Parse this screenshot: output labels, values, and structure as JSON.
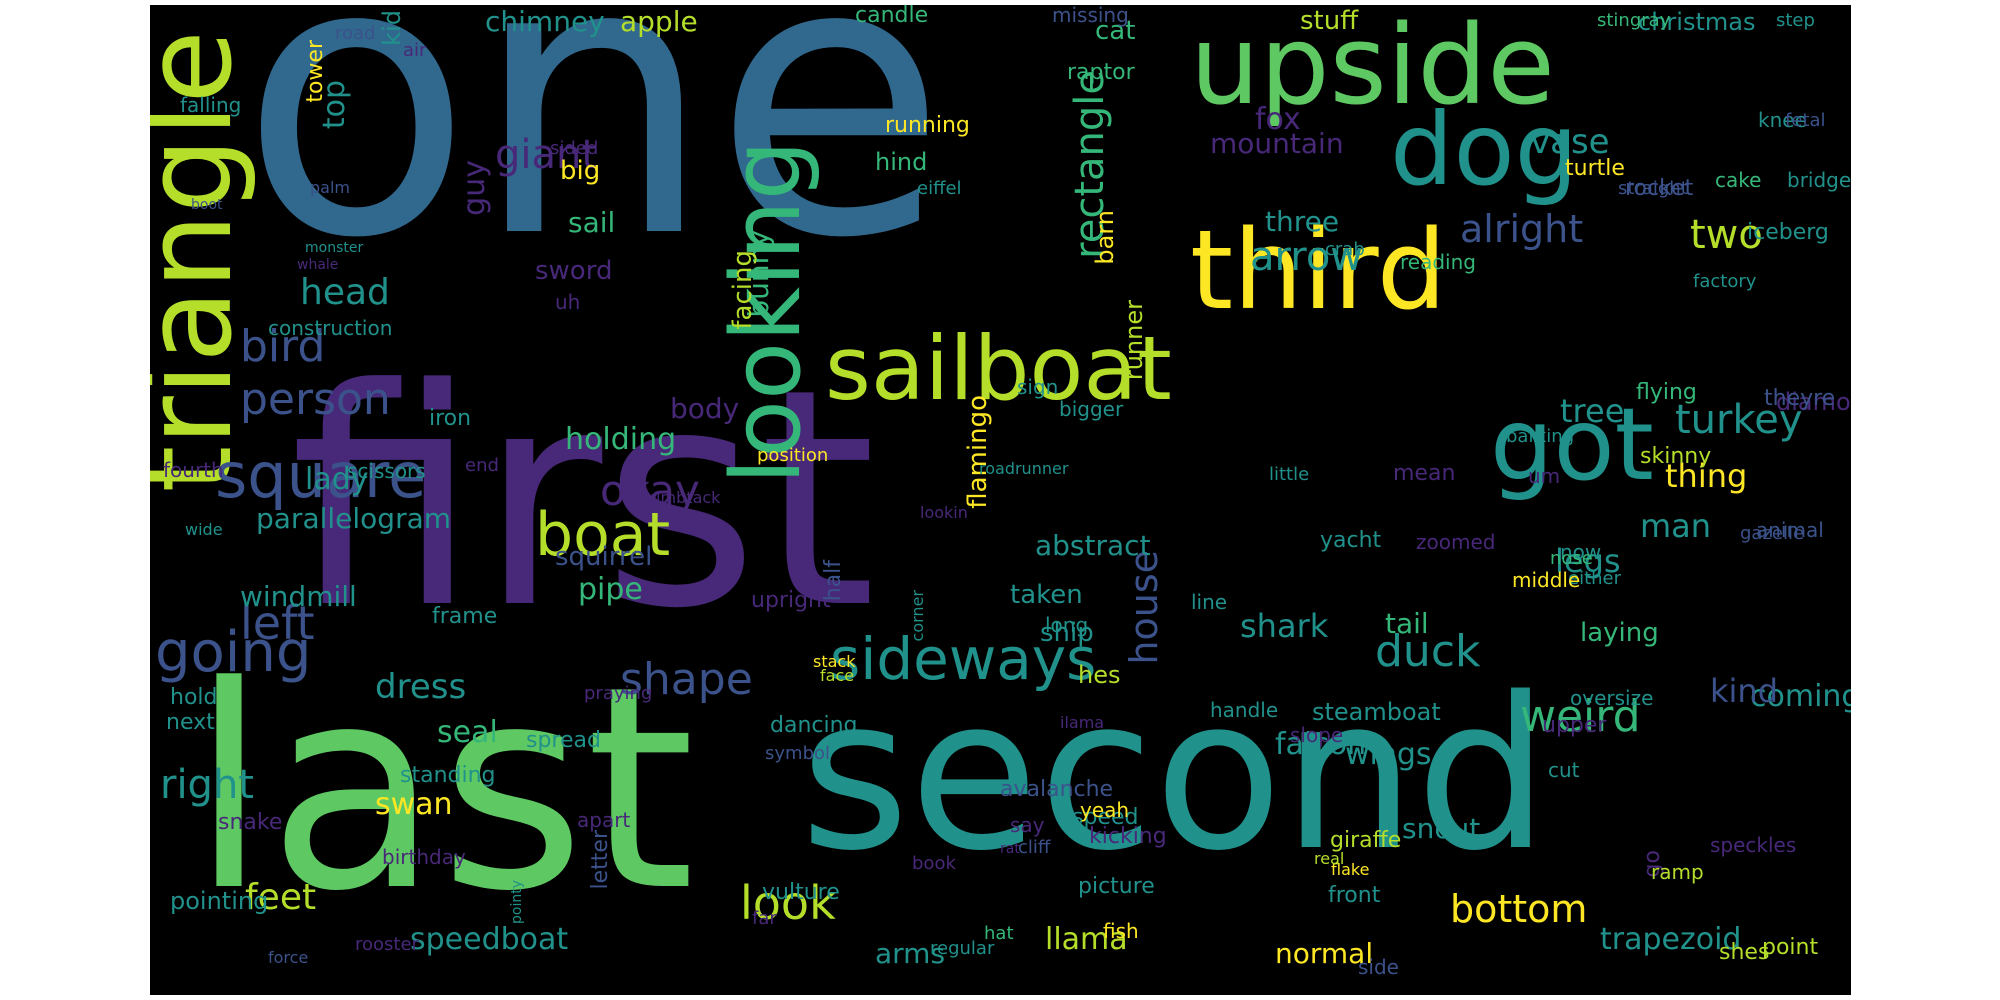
{
  "colors": {
    "background": "#000000",
    "palette": [
      "#3b528b",
      "#31688e",
      "#21918c",
      "#5ec962",
      "#fde725",
      "#482878",
      "#35b779",
      "#b5de2b",
      "#440154",
      "#26828e"
    ]
  },
  "words": [
    "one",
    "first",
    "last",
    "second",
    "triangle",
    "upside",
    "third",
    "got",
    "dog",
    "sailboat",
    "looking",
    "square",
    "boat",
    "sideways",
    "going",
    "person",
    "bird",
    "left",
    "right",
    "shape",
    "duck",
    "arrow",
    "weird",
    "bottom",
    "look",
    "turkey",
    "okay",
    "giant",
    "head",
    "rectangle",
    "two",
    "alright",
    "vase",
    "fox",
    "mountain",
    "tree",
    "thing",
    "man",
    "legs",
    "house",
    "feet",
    "dress",
    "speedboat",
    "llama",
    "arms",
    "swan",
    "seal",
    "holding",
    "body",
    "pipe",
    "sail",
    "sword",
    "big",
    "top",
    "guy",
    "lady",
    "parallelogram",
    "windmill",
    "squirrel",
    "abstract",
    "shark",
    "taken",
    "ship",
    "falcon",
    "wings",
    "coming",
    "kind",
    "snout",
    "tail",
    "laying",
    "trapezoid",
    "normal",
    "three",
    "cat",
    "apple",
    "chimney",
    "stuff",
    "christmas",
    "knee",
    "turtle",
    "rocket",
    "hind",
    "running",
    "bunny",
    "facing",
    "flamingo",
    "runner",
    "barn",
    "raptor",
    "candle",
    "missing",
    "stingray",
    "step",
    "kid",
    "road",
    "air",
    "tower",
    "falling",
    "sided",
    "fetal",
    "eiffel",
    "straight",
    "iceberg",
    "bridge",
    "cake",
    "boot",
    "monster",
    "whale",
    "construction",
    "uh",
    "reading",
    "crab",
    "factory",
    "diamond",
    "flying",
    "theyre",
    "barking",
    "skinny",
    "um",
    "iron",
    "fourth",
    "scissors",
    "end",
    "position",
    "roadrunner",
    "sign",
    "bigger",
    "mean",
    "little",
    "lookin",
    "thumbtack",
    "wide",
    "animal",
    "yacht",
    "zoomed",
    "gazelle",
    "now",
    "either",
    "middle",
    "nose",
    "line",
    "frame",
    "upright",
    "half",
    "corner",
    "hold",
    "next",
    "standing",
    "snake",
    "birthday",
    "pointing",
    "spread",
    "apart",
    "dancing",
    "symbol",
    "stack",
    "praying",
    "face",
    "hes",
    "long",
    "oversize",
    "upper",
    "cut",
    "steamboat",
    "slope",
    "handle",
    "ilama",
    "avalanche",
    "speed",
    "kicking",
    "picture",
    "yeah",
    "say",
    "cliff",
    "front",
    "giraffe",
    "go",
    "ramp",
    "speckles",
    "flake",
    "real",
    "pointy",
    "rat",
    "book",
    "vulture",
    "letter",
    "far",
    "rooster",
    "force",
    "regular",
    "hat",
    "fish",
    "side",
    "shes",
    "point",
    "palm"
  ]
}
